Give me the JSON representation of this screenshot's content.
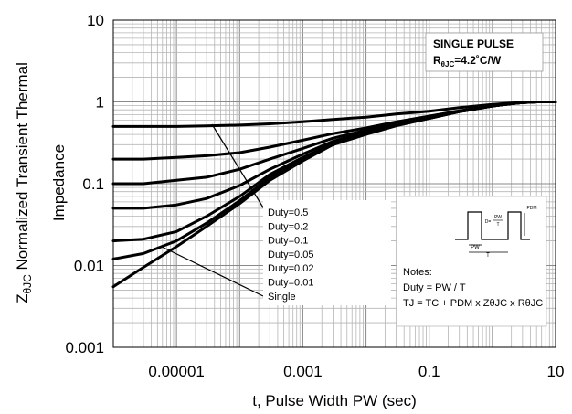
{
  "chart_data": {
    "type": "line",
    "title": "",
    "xlabel": "t, Pulse Width PW (sec)",
    "ylabel_main": "Z",
    "ylabel_sub": "θJC",
    "ylabel_rest": " Normalized Transient Thermal",
    "ylabel_line2": "Impedance",
    "xscale": "log",
    "yscale": "log",
    "xlim": [
      1e-06,
      10
    ],
    "ylim": [
      0.001,
      10
    ],
    "x_ticks": [
      "0.00001",
      "0.001",
      "0.1",
      "10"
    ],
    "y_ticks": [
      "0.001",
      "0.01",
      "0.1",
      "1",
      "10"
    ],
    "grid": true,
    "line_color": "#000000",
    "x": [
      1e-06,
      3e-06,
      1e-05,
      3e-05,
      0.0001,
      0.0003,
      0.001,
      0.003,
      0.01,
      0.03,
      0.1,
      0.3,
      1,
      2,
      3,
      4,
      5,
      10
    ],
    "series": [
      {
        "name": "Duty=0.5",
        "values": [
          0.5,
          0.5,
          0.5,
          0.51,
          0.52,
          0.54,
          0.57,
          0.61,
          0.65,
          0.71,
          0.77,
          0.85,
          0.93,
          0.97,
          0.985,
          0.99,
          1.0,
          1.0
        ]
      },
      {
        "name": "Duty=0.2",
        "values": [
          0.2,
          0.2,
          0.21,
          0.22,
          0.24,
          0.28,
          0.34,
          0.41,
          0.48,
          0.57,
          0.67,
          0.78,
          0.9,
          0.96,
          0.98,
          0.99,
          1.0,
          1.0
        ]
      },
      {
        "name": "Duty=0.1",
        "values": [
          0.1,
          0.1,
          0.11,
          0.12,
          0.15,
          0.2,
          0.27,
          0.36,
          0.45,
          0.55,
          0.65,
          0.77,
          0.89,
          0.95,
          0.98,
          0.99,
          1.0,
          1.0
        ]
      },
      {
        "name": "Duty=0.05",
        "values": [
          0.05,
          0.05,
          0.055,
          0.066,
          0.095,
          0.15,
          0.23,
          0.33,
          0.43,
          0.53,
          0.64,
          0.76,
          0.89,
          0.95,
          0.98,
          0.99,
          1.0,
          1.0
        ]
      },
      {
        "name": "Duty=0.02",
        "values": [
          0.02,
          0.021,
          0.026,
          0.04,
          0.07,
          0.13,
          0.21,
          0.31,
          0.41,
          0.52,
          0.63,
          0.76,
          0.89,
          0.95,
          0.98,
          0.99,
          1.0,
          1.0
        ]
      },
      {
        "name": "Duty=0.01",
        "values": [
          0.012,
          0.014,
          0.02,
          0.033,
          0.062,
          0.12,
          0.2,
          0.3,
          0.41,
          0.52,
          0.63,
          0.76,
          0.89,
          0.95,
          0.98,
          0.99,
          1.0,
          1.0
        ]
      },
      {
        "name": "Single",
        "values": [
          0.0055,
          0.0095,
          0.017,
          0.03,
          0.057,
          0.11,
          0.19,
          0.3,
          0.4,
          0.51,
          0.63,
          0.76,
          0.89,
          0.95,
          0.98,
          0.99,
          1.0,
          1.0
        ]
      }
    ],
    "legend_position": "center-bottom",
    "info_box": {
      "title": "SINGLE PULSE",
      "r_main": "R",
      "r_sub": "θJC",
      "r_value": "=4.2˚C/W"
    },
    "notes": {
      "heading": "Notes:",
      "duty_formula": "Duty = PW / T",
      "tj_formula": "TJ = TC + PDM x ZθJC x RθJC",
      "diagram_labels": [
        "PW",
        "T",
        "PW",
        "T",
        "PDM",
        "D="
      ]
    }
  }
}
